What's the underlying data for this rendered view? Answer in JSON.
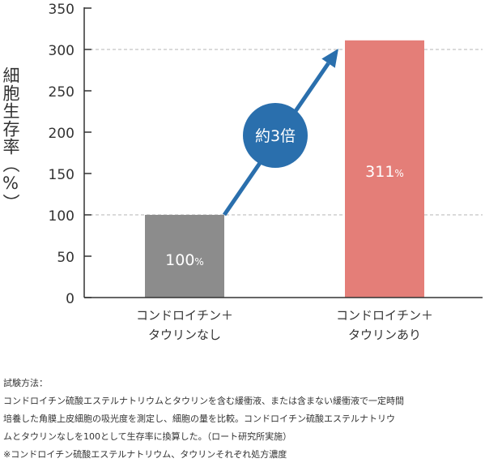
{
  "chart_data": {
    "type": "bar",
    "ylabel": "細胞生存率（%）",
    "ylim": [
      0,
      350
    ],
    "yticks": [
      0,
      50,
      100,
      150,
      200,
      250,
      300,
      350
    ],
    "grid_dashed_at": [
      100,
      300
    ],
    "categories": [
      [
        "コンドロイチン＋",
        "タウリンなし"
      ],
      [
        "コンドロイチン＋",
        "タウリンあり"
      ]
    ],
    "values": [
      100,
      311
    ],
    "value_labels": [
      {
        "num": "100",
        "unit": "%"
      },
      {
        "num": "311",
        "unit": "%"
      }
    ],
    "bar_colors": [
      "#8c8c8c",
      "#e47e78"
    ],
    "annotation": {
      "text": "約3倍",
      "color": "#2a6fad"
    }
  },
  "method": {
    "heading": "試験方法：",
    "lines": [
      "コンドロイチン硫酸エステルナトリウムとタウリンを含む緩衝液、または含まない緩衝液で一定時間",
      "培養した角膜上皮細胞の吸光度を測定し、細胞の量を比較。コンドロイチン硫酸エステルナトリウ",
      "ムとタウリンなしを100として生存率に換算した。（ロート研究所実施）",
      "※コンドロイチン硫酸エステルナトリウム、タウリンそれぞれ処方濃度"
    ]
  }
}
